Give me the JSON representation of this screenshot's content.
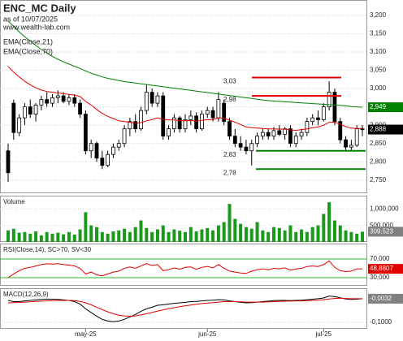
{
  "chart_data": [
    {
      "type": "candlestick",
      "title": "ENC_MC Daily",
      "subtitle": "as of 10/07/2025",
      "source": "www.wealth-lab.com",
      "open": [
        2830,
        2960,
        2880,
        2920,
        2950,
        2930,
        2955,
        2970,
        2960,
        2975,
        2980,
        2965,
        2975,
        2960,
        2930,
        2830,
        2850,
        2810,
        2790,
        2820,
        2840,
        2850,
        2890,
        2910,
        2890,
        2940,
        2990,
        2960,
        2980,
        2870,
        2890,
        2920,
        2890,
        2915,
        2925,
        2890,
        2930,
        2940,
        2920,
        2960,
        2910,
        2870,
        2850,
        2840,
        2830,
        2850,
        2870,
        2880,
        2870,
        2885,
        2875,
        2890,
        2850,
        2870,
        2880,
        2910,
        2920,
        2915,
        2950,
        2990,
        2910,
        2860,
        2840,
        2845,
        2890
      ],
      "high": [
        2850,
        2970,
        2930,
        2960,
        2970,
        2960,
        2980,
        2990,
        2985,
        2995,
        2990,
        2985,
        2985,
        2970,
        2940,
        2860,
        2855,
        2830,
        2830,
        2850,
        2860,
        2900,
        2920,
        2930,
        2950,
        3010,
        3000,
        2990,
        2990,
        2900,
        2930,
        2925,
        2930,
        2940,
        2935,
        2940,
        2950,
        2950,
        2990,
        2970,
        2920,
        2890,
        2870,
        2860,
        2860,
        2880,
        2890,
        2890,
        2895,
        2900,
        2895,
        2900,
        2880,
        2890,
        2920,
        2930,
        2940,
        2960,
        3020,
        3000,
        2920,
        2870,
        2860,
        2900,
        2900
      ],
      "low": [
        2745,
        2860,
        2870,
        2900,
        2920,
        2910,
        2940,
        2950,
        2950,
        2960,
        2960,
        2955,
        2950,
        2920,
        2820,
        2810,
        2800,
        2780,
        2785,
        2810,
        2830,
        2840,
        2870,
        2880,
        2885,
        2930,
        2950,
        2950,
        2860,
        2860,
        2880,
        2880,
        2880,
        2900,
        2880,
        2885,
        2920,
        2910,
        2910,
        2900,
        2860,
        2840,
        2830,
        2820,
        2790,
        2840,
        2860,
        2860,
        2860,
        2870,
        2860,
        2840,
        2840,
        2860,
        2870,
        2900,
        2900,
        2910,
        2940,
        2900,
        2850,
        2830,
        2830,
        2840,
        2870
      ],
      "close": [
        2770,
        2880,
        2920,
        2950,
        2930,
        2955,
        2970,
        2960,
        2975,
        2980,
        2965,
        2975,
        2960,
        2930,
        2830,
        2850,
        2810,
        2790,
        2820,
        2840,
        2850,
        2890,
        2910,
        2890,
        2940,
        2990,
        2960,
        2980,
        2870,
        2890,
        2920,
        2890,
        2915,
        2925,
        2890,
        2930,
        2940,
        2920,
        2970,
        2910,
        2870,
        2850,
        2840,
        2830,
        2850,
        2870,
        2880,
        2870,
        2885,
        2875,
        2890,
        2850,
        2870,
        2880,
        2910,
        2920,
        2915,
        2950,
        2990,
        2910,
        2860,
        2840,
        2845,
        2890,
        2888
      ],
      "last_label": "2,888",
      "label_color": "#000000",
      "series": [
        {
          "name": "EMA(Close,21)",
          "color": "#e00000",
          "values": [
            3060,
            3045,
            3032,
            3020,
            3010,
            3002,
            2996,
            2992,
            2990,
            2988,
            2986,
            2984,
            2982,
            2978,
            2965,
            2955,
            2943,
            2932,
            2924,
            2918,
            2912,
            2910,
            2908,
            2905,
            2907,
            2912,
            2915,
            2920,
            2916,
            2914,
            2914,
            2912,
            2912,
            2913,
            2911,
            2913,
            2915,
            2915,
            2920,
            2919,
            2914,
            2908,
            2902,
            2895,
            2893,
            2892,
            2891,
            2890,
            2890,
            2889,
            2889,
            2887,
            2886,
            2888,
            2890,
            2893,
            2895,
            2900,
            2908,
            2908,
            2903,
            2896,
            2892,
            2891,
            2891
          ]
        },
        {
          "name": "EMA(Close,70)",
          "color": "#008000",
          "last_label": "2,949",
          "values": [
            3185,
            3170,
            3155,
            3142,
            3130,
            3118,
            3107,
            3097,
            3088,
            3080,
            3073,
            3067,
            3061,
            3055,
            3048,
            3042,
            3037,
            3032,
            3028,
            3025,
            3022,
            3019,
            3017,
            3015,
            3013,
            3011,
            3009,
            3007,
            3005,
            3003,
            3001,
            2999,
            2997,
            2995,
            2993,
            2991,
            2989,
            2987,
            2985,
            2983,
            2981,
            2979,
            2977,
            2975,
            2973,
            2971,
            2969,
            2967,
            2966,
            2965,
            2964,
            2963,
            2962,
            2961,
            2960,
            2959,
            2958,
            2957,
            2956,
            2955,
            2954,
            2953,
            2951,
            2950,
            2949
          ]
        }
      ],
      "levels": [
        {
          "value": 3030,
          "label": "3,03",
          "color": "#e00000"
        },
        {
          "value": 2980,
          "label": "2,98",
          "color": "#e00000"
        },
        {
          "value": 2830,
          "label": "2,83",
          "color": "#008000"
        },
        {
          "value": 2780,
          "label": "2,78",
          "color": "#008000"
        }
      ],
      "ylim": [
        2714,
        3242
      ],
      "yticks": [
        {
          "value": 2750,
          "label": "2,750"
        },
        {
          "value": 2800,
          "label": "2,800"
        },
        {
          "value": 2850,
          "label": "2,850"
        },
        {
          "value": 2900,
          "label": "2,900"
        },
        {
          "value": 2950,
          "label": "2,950"
        },
        {
          "value": 3000,
          "label": "3,000"
        },
        {
          "value": 3050,
          "label": "3,050"
        },
        {
          "value": 3100,
          "label": "3,100"
        },
        {
          "value": 3150,
          "label": "3,150"
        },
        {
          "value": 3200,
          "label": "3,200"
        }
      ],
      "xticks": [
        {
          "value": 14,
          "label": "may-25"
        },
        {
          "value": 36,
          "label": "jun-25"
        },
        {
          "value": 57,
          "label": "jul-25"
        }
      ]
    },
    {
      "type": "bar",
      "title": "Volume",
      "color": "#1a9a1a",
      "last_label": "309,523",
      "label_color": "#808080",
      "values": [
        350000,
        400000,
        280000,
        300000,
        250000,
        320000,
        200000,
        300000,
        250000,
        280000,
        230000,
        300000,
        220000,
        380000,
        900000,
        500000,
        450000,
        300000,
        250000,
        320000,
        350000,
        400000,
        300000,
        450000,
        650000,
        420000,
        300000,
        380000,
        500000,
        300000,
        380000,
        340000,
        300000,
        450000,
        320000,
        380000,
        420000,
        350000,
        500000,
        600000,
        1150000,
        700000,
        550000,
        450000,
        400000,
        600000,
        350000,
        300000,
        450000,
        420000,
        350000,
        500000,
        300000,
        380000,
        300000,
        450000,
        500000,
        850000,
        1200000,
        650000,
        500000,
        350000,
        300000,
        250000,
        309523
      ],
      "ylim": [
        0,
        1400000
      ],
      "yticks": [
        {
          "value": 500000,
          "label": "500,000"
        },
        {
          "value": 1000000,
          "label": "1,000,000"
        }
      ]
    },
    {
      "type": "line",
      "title": "RSI(Close,14), SC>70, SV<30",
      "grid_color": "#30b030",
      "series": [
        {
          "color": "#e00000",
          "last_label": "48,8807",
          "values": [
            30,
            38,
            45,
            50,
            52,
            55,
            58,
            60,
            59,
            60,
            58,
            57,
            55,
            50,
            38,
            42,
            36,
            34,
            38,
            42,
            44,
            50,
            53,
            50,
            55,
            60,
            56,
            58,
            45,
            47,
            51,
            48,
            52,
            53,
            48,
            52,
            54,
            51,
            58,
            50,
            44,
            42,
            40,
            39,
            44,
            47,
            49,
            47,
            50,
            49,
            51,
            46,
            49,
            50,
            54,
            55,
            54,
            58,
            66,
            52,
            45,
            43,
            44,
            49,
            48.8807
          ]
        }
      ],
      "ylim": [
        12.6,
        103
      ],
      "yticks": [
        {
          "value": 30,
          "label": "30,000"
        },
        {
          "value": 70,
          "label": "70,000"
        }
      ]
    },
    {
      "type": "line",
      "title": "MACD(12,26,9)",
      "series": [
        {
          "color": "#000000",
          "last_label": "-0,0032",
          "label_color": "#808080",
          "values": [
            -0.01,
            -0.015,
            -0.015,
            -0.012,
            -0.01,
            -0.008,
            -0.006,
            -0.005,
            -0.005,
            -0.006,
            -0.008,
            -0.01,
            -0.015,
            -0.025,
            -0.045,
            -0.06,
            -0.075,
            -0.088,
            -0.095,
            -0.098,
            -0.095,
            -0.088,
            -0.078,
            -0.068,
            -0.055,
            -0.045,
            -0.038,
            -0.03,
            -0.028,
            -0.025,
            -0.022,
            -0.02,
            -0.018,
            -0.015,
            -0.014,
            -0.012,
            -0.01,
            -0.009,
            -0.007,
            -0.008,
            -0.012,
            -0.015,
            -0.018,
            -0.02,
            -0.019,
            -0.017,
            -0.015,
            -0.013,
            -0.011,
            -0.01,
            -0.01,
            -0.011,
            -0.01,
            -0.009,
            -0.007,
            -0.005,
            -0.003,
            0.0,
            0.008,
            0.006,
            0.001,
            -0.004,
            -0.006,
            -0.005,
            -0.0032
          ]
        },
        {
          "color": "#e00000",
          "values": [
            -0.02,
            -0.019,
            -0.018,
            -0.017,
            -0.016,
            -0.014,
            -0.013,
            -0.012,
            -0.011,
            -0.01,
            -0.01,
            -0.01,
            -0.011,
            -0.014,
            -0.02,
            -0.028,
            -0.038,
            -0.048,
            -0.057,
            -0.065,
            -0.071,
            -0.074,
            -0.075,
            -0.074,
            -0.07,
            -0.065,
            -0.06,
            -0.054,
            -0.049,
            -0.044,
            -0.04,
            -0.036,
            -0.032,
            -0.029,
            -0.026,
            -0.023,
            -0.021,
            -0.019,
            -0.017,
            -0.015,
            -0.015,
            -0.015,
            -0.016,
            -0.017,
            -0.017,
            -0.017,
            -0.017,
            -0.016,
            -0.015,
            -0.014,
            -0.013,
            -0.013,
            -0.012,
            -0.012,
            -0.011,
            -0.01,
            -0.009,
            -0.007,
            -0.004,
            -0.002,
            -0.001,
            -0.002,
            -0.003,
            -0.003,
            -0.003
          ]
        }
      ],
      "ylim": [
        -0.127,
        0.04
      ],
      "yticks": [
        {
          "value": -0.1,
          "label": "-0,1000"
        }
      ]
    }
  ]
}
